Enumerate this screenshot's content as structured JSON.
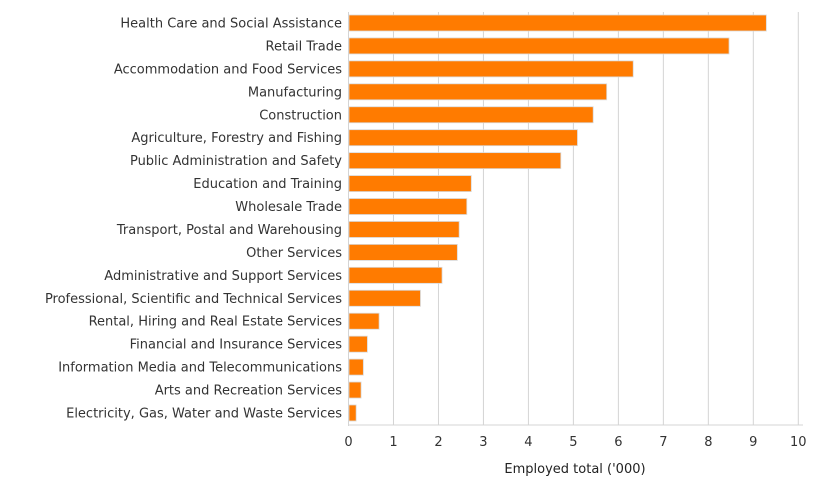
{
  "chart_data": {
    "type": "bar",
    "orientation": "horizontal",
    "title": "",
    "xlabel": "Employed total ('000)",
    "ylabel": "",
    "xlim": [
      0,
      10
    ],
    "xticks": [
      0,
      1,
      2,
      3,
      4,
      5,
      6,
      7,
      8,
      9,
      10
    ],
    "grid": true,
    "legend": "none",
    "bar_color": "#ff7b00",
    "categories": [
      "Health Care and Social Assistance",
      "Retail Trade",
      "Accommodation and Food Services",
      "Manufacturing",
      "Construction",
      "Agriculture, Forestry and Fishing",
      "Public Administration and Safety",
      "Education and Training",
      "Wholesale Trade",
      "Transport, Postal and Warehousing",
      "Other Services",
      "Administrative and Support Services",
      "Professional, Scientific and Technical Services",
      "Rental, Hiring and Real Estate Services",
      "Financial and Insurance Services",
      "Information Media and Telecommunications",
      "Arts and Recreation Services",
      "Electricity, Gas, Water and Waste Services"
    ],
    "values": [
      9.29,
      8.46,
      6.33,
      5.74,
      5.44,
      5.09,
      4.72,
      2.73,
      2.63,
      2.46,
      2.42,
      2.08,
      1.6,
      0.68,
      0.42,
      0.33,
      0.28,
      0.17
    ]
  }
}
